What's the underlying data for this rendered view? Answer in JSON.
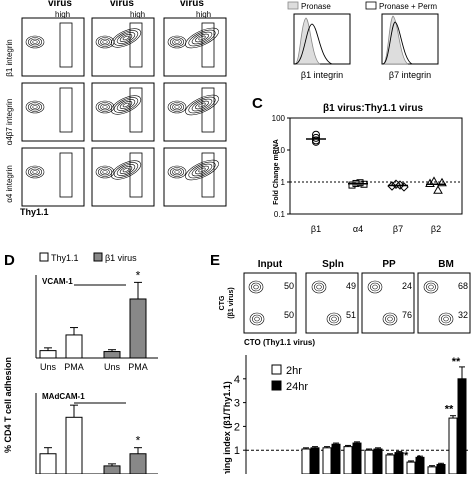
{
  "panelA": {
    "col_headers": [
      "virus",
      "virus",
      "virus"
    ],
    "row_labels": [
      "β1 integrin",
      "α4β7 integrin",
      "α4 integrin"
    ],
    "gate_label": "high",
    "x_label": "Thy1.1"
  },
  "panelB": {
    "legend": [
      "Pronase",
      "Pronase + Perm"
    ],
    "x_labels": [
      "β1 integrin",
      "β7 integrin"
    ]
  },
  "panelC": {
    "letter": "C",
    "title": "β1 virus:Thy1.1 virus",
    "ylabel": "Fold Change mRNA",
    "y_ticks": [
      "100",
      "10",
      "1",
      "0.1"
    ],
    "categories": [
      "β1",
      "α4",
      "β7",
      "β2"
    ]
  },
  "panelD": {
    "letter": "D",
    "legend": [
      "Thy1.1",
      "β1 virus"
    ],
    "ylabel": "% CD4 T cell adhesion",
    "top": {
      "title": "VCAM-1",
      "x_labels": [
        "Uns",
        "PMA",
        "Uns",
        "PMA"
      ],
      "star": "*"
    },
    "bottom": {
      "title": "MAdCAM-1",
      "star": "*"
    }
  },
  "panelE": {
    "letter": "E",
    "titles": [
      "Input",
      "Spln",
      "PP",
      "BM"
    ],
    "quadrants": [
      {
        "top": "50",
        "bottom": "50"
      },
      {
        "top": "49",
        "bottom": "51"
      },
      {
        "top": "24",
        "bottom": "76"
      },
      {
        "top": "68",
        "bottom": "32"
      }
    ],
    "ylabel_1": "CTG",
    "ylabel_2": "(β1 virus)",
    "xlabel": "CTO (Thy1.1 virus)",
    "bar_ylabel": "ming index (β1/Thy1.1)",
    "bar_y_ticks": [
      "4",
      "3",
      "2",
      "1"
    ],
    "bar_legend": [
      "2hr",
      "24hr"
    ],
    "stars": [
      "**",
      "**",
      "**",
      "*"
    ]
  },
  "chart_data": [
    {
      "type": "scatter",
      "title": "β1 virus:Thy1.1 virus",
      "ylabel": "Fold Change mRNA",
      "y_scale": "log",
      "ylim": [
        0.1,
        100
      ],
      "categories": [
        "β1",
        "α4",
        "β7",
        "β2"
      ],
      "series": [
        {
          "name": "β1",
          "marker": "circle",
          "values": [
            30,
            24,
            20,
            18
          ]
        },
        {
          "name": "α4",
          "marker": "square",
          "values": [
            0.8,
            0.9,
            0.95,
            0.85
          ]
        },
        {
          "name": "β7",
          "marker": "diamond",
          "values": [
            0.75,
            0.85,
            0.8,
            0.7
          ]
        },
        {
          "name": "β2",
          "marker": "triangle",
          "values": [
            0.9,
            1.05,
            0.55,
            0.95
          ]
        }
      ],
      "mean_values": [
        22,
        0.88,
        0.78,
        0.85
      ],
      "reference_line": 1
    },
    {
      "type": "bar",
      "title": "VCAM-1",
      "ylabel": "% CD4 T cell adhesion",
      "categories": [
        "Uns",
        "PMA",
        "Uns",
        "PMA"
      ],
      "series": [
        {
          "name": "Thy1.1",
          "values": [
            8,
            25,
            null,
            null
          ],
          "errors": [
            3,
            8,
            null,
            null
          ]
        },
        {
          "name": "β1 virus",
          "values": [
            null,
            null,
            7,
            64
          ],
          "errors": [
            null,
            null,
            2,
            18
          ]
        }
      ],
      "ylim": [
        0,
        90
      ]
    },
    {
      "type": "bar",
      "title": "MAdCAM-1",
      "ylabel": "% CD4 T cell adhesion",
      "categories": [
        "Uns",
        "PMA",
        "Uns",
        "PMA"
      ],
      "series": [
        {
          "name": "Thy1.1",
          "values": [
            10,
            28,
            null,
            null
          ],
          "errors": [
            3,
            6,
            null,
            null
          ]
        },
        {
          "name": "β1 virus",
          "values": [
            null,
            null,
            4,
            10
          ],
          "errors": [
            null,
            null,
            1,
            3
          ]
        }
      ],
      "ylim": [
        0,
        40
      ]
    },
    {
      "type": "bar",
      "ylabel": "ming index (β1/Thy1.1)",
      "series": [
        {
          "name": "2hr",
          "values": [
            1.05,
            1.1,
            1.15,
            1.0,
            0.8,
            0.5,
            0.3,
            2.35
          ],
          "errors": [
            0.05,
            0.05,
            0.05,
            0.05,
            0.05,
            0.05,
            0.05,
            0.1
          ]
        },
        {
          "name": "24hr",
          "values": [
            1.1,
            1.25,
            1.3,
            1.05,
            0.9,
            0.7,
            0.4,
            4.0
          ],
          "errors": [
            0.05,
            0.05,
            0.05,
            0.05,
            0.05,
            0.05,
            0.05,
            0.5
          ]
        }
      ],
      "reference_line": 1,
      "ylim": [
        0,
        5
      ]
    }
  ]
}
